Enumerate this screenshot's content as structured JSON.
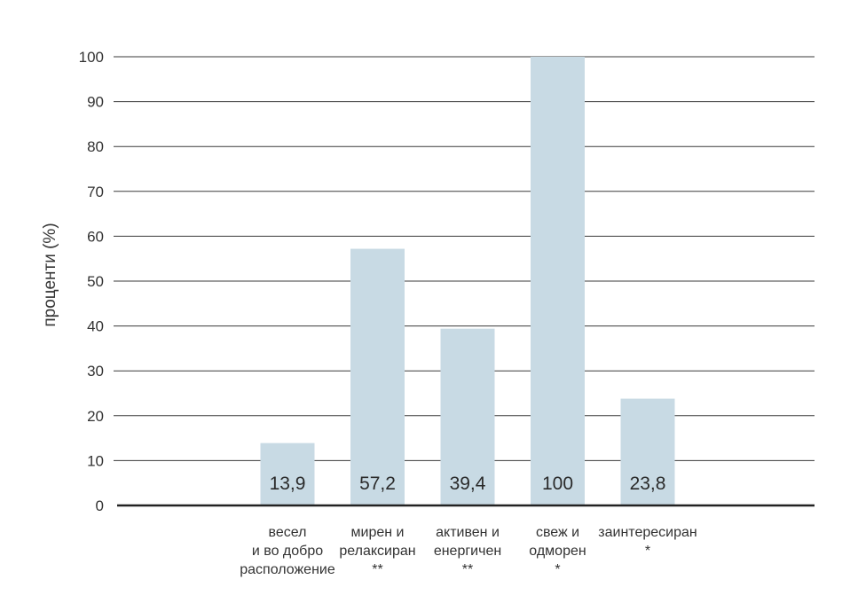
{
  "chart_data": {
    "type": "bar",
    "title": "",
    "xlabel": "",
    "ylabel": "проценти  (%)",
    "ylim": [
      0,
      100
    ],
    "yticks": [
      0,
      10,
      20,
      30,
      40,
      50,
      60,
      70,
      80,
      90,
      100
    ],
    "grid": true,
    "categories": [
      [
        "весел",
        "и во добро",
        "расположение"
      ],
      [
        "мирен и",
        "релаксиран",
        "**"
      ],
      [
        "активен и",
        "енергичен",
        "**"
      ],
      [
        "свеж и",
        "одморен",
        "*"
      ],
      [
        "заинтересиран",
        "*"
      ]
    ],
    "values": [
      13.9,
      57.2,
      39.4,
      100,
      23.8
    ],
    "data_labels": [
      "13,9",
      "57,2",
      "39,4",
      "100",
      "23,8"
    ],
    "colors": {
      "bar": "#c8dae4",
      "grid": "#3a3a3a",
      "axis": "#222222",
      "text": "#333333"
    }
  }
}
